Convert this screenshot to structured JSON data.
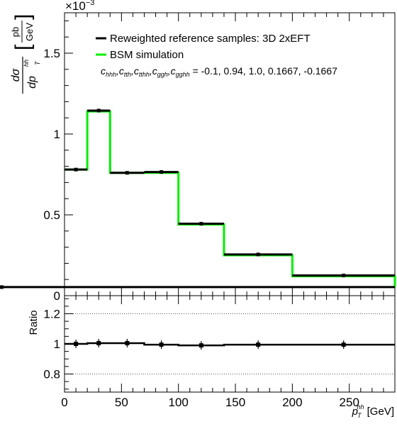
{
  "chart_data": [
    {
      "type": "line",
      "panel": "main",
      "ylim": [
        0,
        0.00175
      ],
      "xlim": [
        0,
        290
      ],
      "exponent_label": "×10",
      "exponent_power": "−3",
      "yticks": [
        {
          "value": 0,
          "label": "0"
        },
        {
          "value": 0.0005,
          "label": "0.5"
        },
        {
          "value": 0.001,
          "label": "1"
        },
        {
          "value": 0.0015,
          "label": "1.5"
        }
      ],
      "ylabel": {
        "num": "dσ",
        "den": "dp",
        "den_sub": "T",
        "den_sup": "hh",
        "unit_num": "pb",
        "unit_den": "GeV"
      },
      "bin_edges": [
        0,
        20,
        40,
        70,
        100,
        140,
        200,
        290
      ],
      "series": [
        {
          "name": "Reweighted reference samples: 3D 2xEFT",
          "color": "#000000",
          "values": [
            0.00078,
            0.001145,
            0.00076,
            0.000765,
            0.000445,
            0.000255,
            0.000125,
            5.3e-05
          ]
        },
        {
          "name": "BSM simulation",
          "color": "#00ee00",
          "values": [
            0.00078,
            0.00114,
            0.00076,
            0.00076,
            0.00044,
            0.00025,
            0.00012,
            5e-05
          ]
        }
      ],
      "legend": {
        "placement": "top-right",
        "coeff_names": [
          {
            "main": "c",
            "sub": "hhh"
          },
          {
            "main": "c",
            "sub": "tth"
          },
          {
            "main": "c",
            "sub": "tthh"
          },
          {
            "main": "c",
            "sub": "ggh"
          },
          {
            "main": "c",
            "sub": "gghh"
          }
        ],
        "coeff_values": " = -0.1, 0.94, 1.0, 0.1667, -0.1667"
      }
    },
    {
      "type": "scatter",
      "panel": "ratio",
      "ylabel": "Ratio",
      "ylim": [
        0.68,
        1.32
      ],
      "xlim": [
        0,
        290
      ],
      "yticks": [
        {
          "value": 0.8,
          "label": "0.8"
        },
        {
          "value": 1.0,
          "label": "1"
        },
        {
          "value": 1.2,
          "label": "1.2"
        }
      ],
      "reference_lines": [
        0.8,
        1.2
      ],
      "xticks": [
        {
          "value": 0,
          "label": "0"
        },
        {
          "value": 50,
          "label": "50"
        },
        {
          "value": 100,
          "label": "100"
        },
        {
          "value": 150,
          "label": "150"
        },
        {
          "value": 200,
          "label": "200"
        },
        {
          "value": 250,
          "label": "250"
        }
      ],
      "xlabel": {
        "main": "p",
        "sub": "T",
        "sup": "hh",
        "unit": " [GeV]"
      },
      "x": [
        10,
        30,
        55,
        85,
        120,
        170,
        245
      ],
      "values": [
        1.0,
        1.005,
        1.005,
        0.995,
        0.99,
        0.995,
        0.995
      ],
      "line_points": {
        "x": [
          0,
          20,
          40,
          70,
          100,
          140,
          200,
          290
        ],
        "y": [
          1.0,
          1.005,
          1.005,
          0.995,
          0.99,
          0.995,
          0.995,
          1.0
        ]
      }
    }
  ]
}
